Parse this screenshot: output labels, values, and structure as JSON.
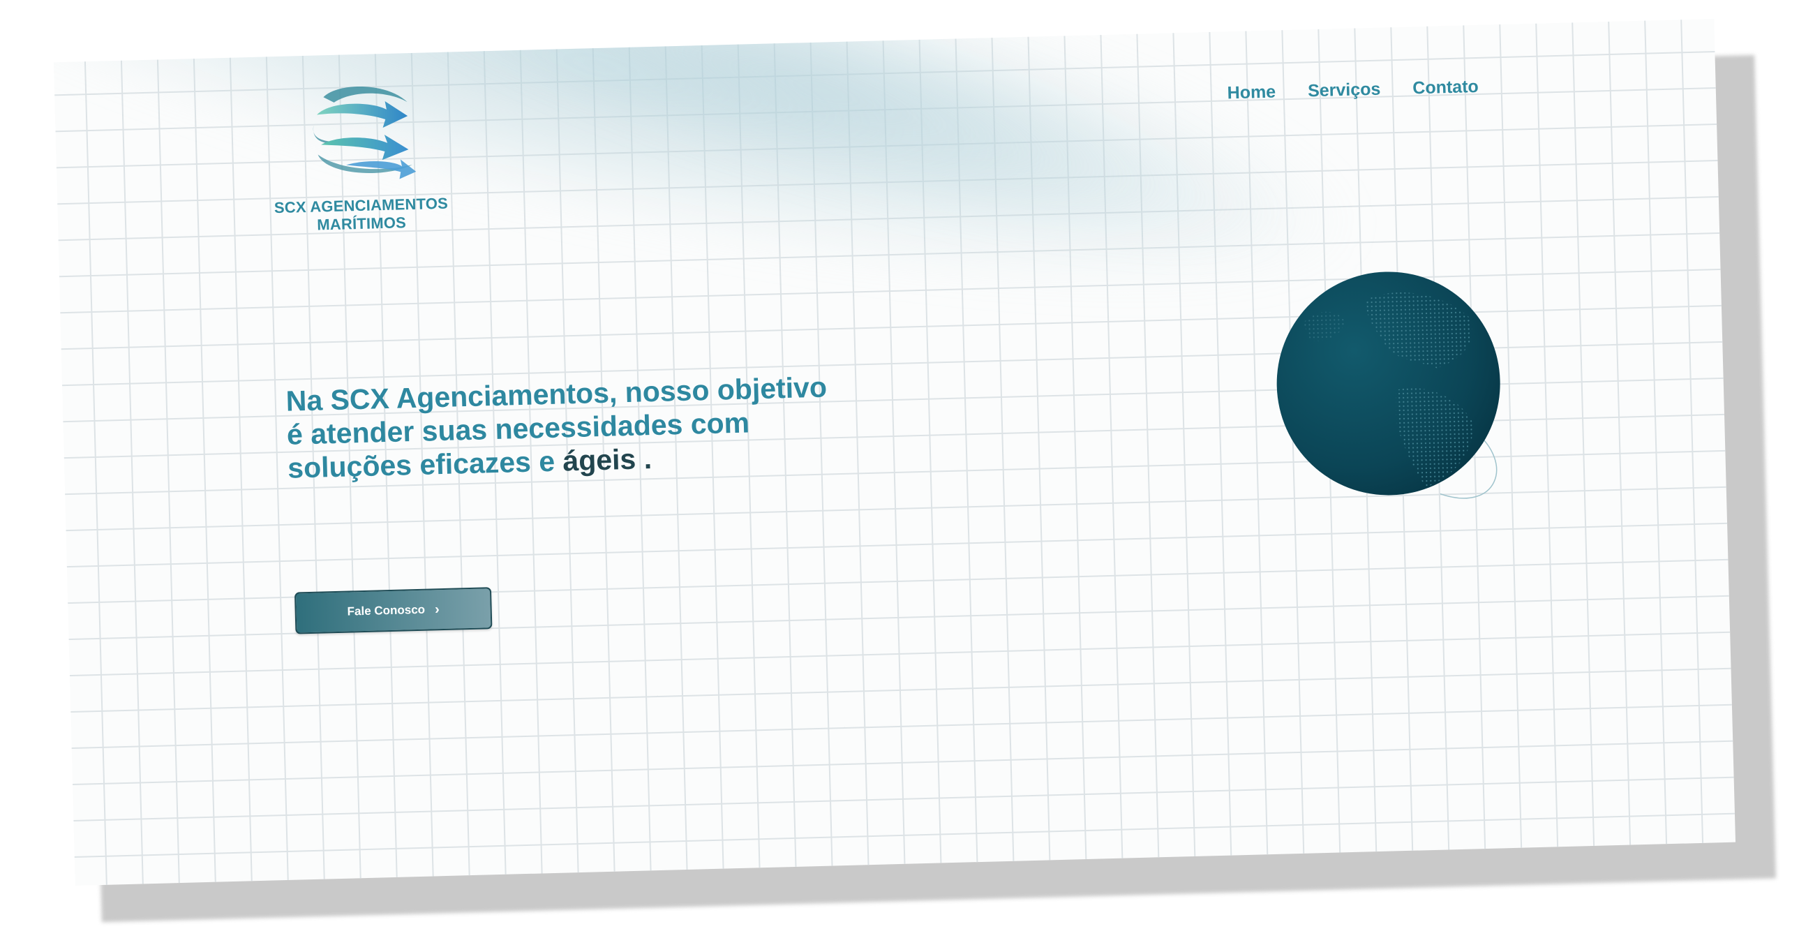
{
  "brand": {
    "name_line1": "SCX AGENCIAMENTOS",
    "name_line2": "MARÍTIMOS",
    "logo_icon": "arrows-swirl-icon",
    "color_primary": "#2f8aa0",
    "color_dark": "#0d4556"
  },
  "nav": {
    "items": [
      {
        "label": "Home"
      },
      {
        "label": "Serviços"
      },
      {
        "label": "Contato"
      }
    ]
  },
  "hero": {
    "line1": "Na SCX Agenciamentos, nosso objetivo",
    "line2": "é atender suas necessidades com",
    "line3_prefix": "soluções eficazes e ",
    "line3_accent": "ágeis",
    "line3_suffix": " ."
  },
  "cta": {
    "label": "Fale Conosco",
    "icon": "chevron-right-icon"
  },
  "globe": {
    "icon": "globe-icon"
  }
}
